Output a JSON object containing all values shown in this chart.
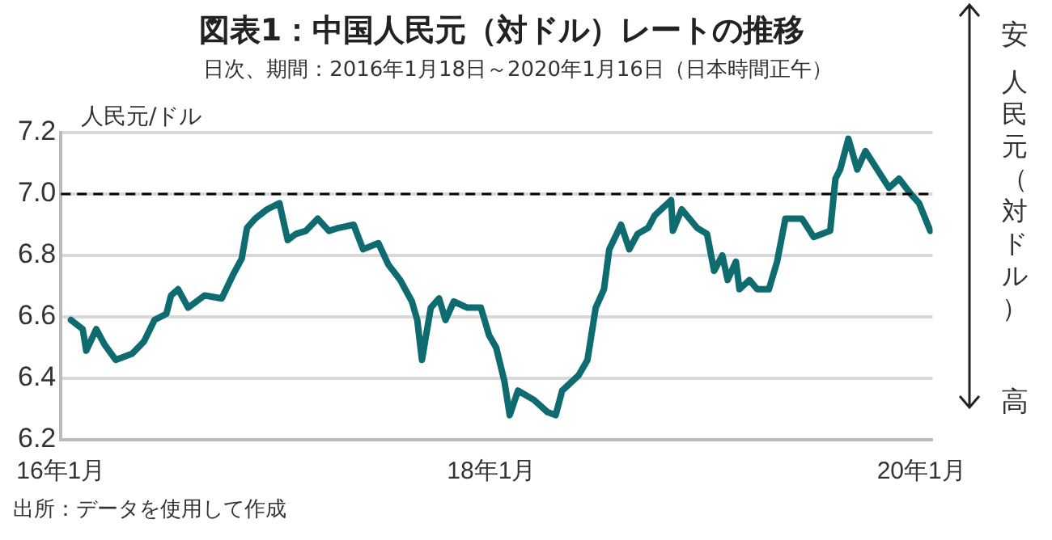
{
  "chart_data": {
    "type": "line",
    "title": "図表1：中国人民元（対ドル）レートの推移",
    "subtitle": "日次、期間：2016年1月18日～2020年1月16日（日本時間正午）",
    "ylabel": "人民元/ドル",
    "annotations": [
      "安",
      "人民元（対ドル）",
      "高",
      "出所：データを使用して作成"
    ],
    "x": [
      "2016-01-18",
      "2016-02-07",
      "2016-02-13",
      "2016-03-01",
      "2016-03-15",
      "2016-04-03",
      "2016-05-01",
      "2016-05-21",
      "2016-06-08",
      "2016-06-28",
      "2016-07-06",
      "2016-07-18",
      "2016-08-04",
      "2016-09-01",
      "2016-09-30",
      "2016-10-20",
      "2016-11-03",
      "2016-11-12",
      "2016-11-26",
      "2016-12-16",
      "2017-01-06",
      "2017-01-20",
      "2017-02-03",
      "2017-02-20",
      "2017-03-12",
      "2017-03-31",
      "2017-04-17",
      "2017-05-12",
      "2017-05-28",
      "2017-06-23",
      "2017-07-10",
      "2017-07-30",
      "2017-08-19",
      "2017-08-28",
      "2017-09-05",
      "2017-09-20",
      "2017-10-04",
      "2017-10-15",
      "2017-10-29",
      "2017-11-21",
      "2017-12-14",
      "2017-12-28",
      "2018-01-09",
      "2018-01-23",
      "2018-02-01",
      "2018-02-15",
      "2018-03-14",
      "2018-04-06",
      "2018-04-20",
      "2018-05-01",
      "2018-05-29",
      "2018-06-13",
      "2018-06-27",
      "2018-07-11",
      "2018-07-20",
      "2018-08-09",
      "2018-08-23",
      "2018-09-06",
      "2018-09-24",
      "2018-10-05",
      "2018-11-02",
      "2018-11-05",
      "2018-11-20",
      "2018-12-16",
      "2019-01-02",
      "2019-01-14",
      "2019-01-28",
      "2019-02-06",
      "2019-02-20",
      "2019-02-26",
      "2019-03-15",
      "2019-03-28",
      "2019-04-17",
      "2019-05-01",
      "2019-05-15",
      "2019-06-12",
      "2019-07-02",
      "2019-07-30",
      "2019-08-08",
      "2019-08-16",
      "2019-08-30",
      "2019-09-14",
      "2019-09-28",
      "2019-10-18",
      "2019-11-07",
      "2019-11-24",
      "2019-12-14",
      "2019-12-28",
      "2020-01-16"
    ],
    "series": [
      {
        "color": "#0e6b70",
        "values": [
          6.59,
          6.56,
          6.49,
          6.56,
          6.51,
          6.46,
          6.48,
          6.52,
          6.59,
          6.61,
          6.67,
          6.69,
          6.63,
          6.67,
          6.66,
          6.74,
          6.79,
          6.89,
          6.92,
          6.95,
          6.97,
          6.85,
          6.87,
          6.88,
          6.92,
          6.88,
          6.89,
          6.9,
          6.82,
          6.84,
          6.77,
          6.72,
          6.65,
          6.59,
          6.46,
          6.63,
          6.66,
          6.59,
          6.65,
          6.63,
          6.63,
          6.54,
          6.5,
          6.39,
          6.28,
          6.36,
          6.33,
          6.29,
          6.28,
          6.36,
          6.41,
          6.46,
          6.63,
          6.69,
          6.82,
          6.9,
          6.82,
          6.87,
          6.89,
          6.93,
          6.98,
          6.88,
          6.95,
          6.89,
          6.87,
          6.75,
          6.8,
          6.72,
          6.78,
          6.69,
          6.72,
          6.69,
          6.69,
          6.78,
          6.92,
          6.92,
          6.86,
          6.88,
          7.05,
          7.08,
          7.18,
          7.08,
          7.14,
          7.08,
          7.02,
          7.05,
          7.0,
          6.97,
          6.88
        ]
      }
    ],
    "xlim": [
      "2016-01-01",
      "2020-01-20"
    ],
    "xticks": [
      {
        "value": "2016-01-01",
        "label": "16年1月"
      },
      {
        "value": "2018-01-01",
        "label": "18年1月"
      },
      {
        "value": "2020-01-01",
        "label": "20年1月"
      }
    ],
    "ylim": [
      6.2,
      7.2
    ],
    "yticks": [
      {
        "value": 6.2,
        "label": "6.2"
      },
      {
        "value": 6.4,
        "label": "6.4"
      },
      {
        "value": 6.6,
        "label": "6.6"
      },
      {
        "value": 6.8,
        "label": "6.8"
      },
      {
        "value": 7.0,
        "label": "7.0"
      },
      {
        "value": 7.2,
        "label": "7.2"
      }
    ],
    "ref_lines": [
      {
        "axis": "y",
        "value": 7.0,
        "color": "#000000",
        "line_style": "dashed"
      }
    ],
    "grid": "y",
    "legend": false,
    "marker": "none",
    "line_style": "solid"
  }
}
